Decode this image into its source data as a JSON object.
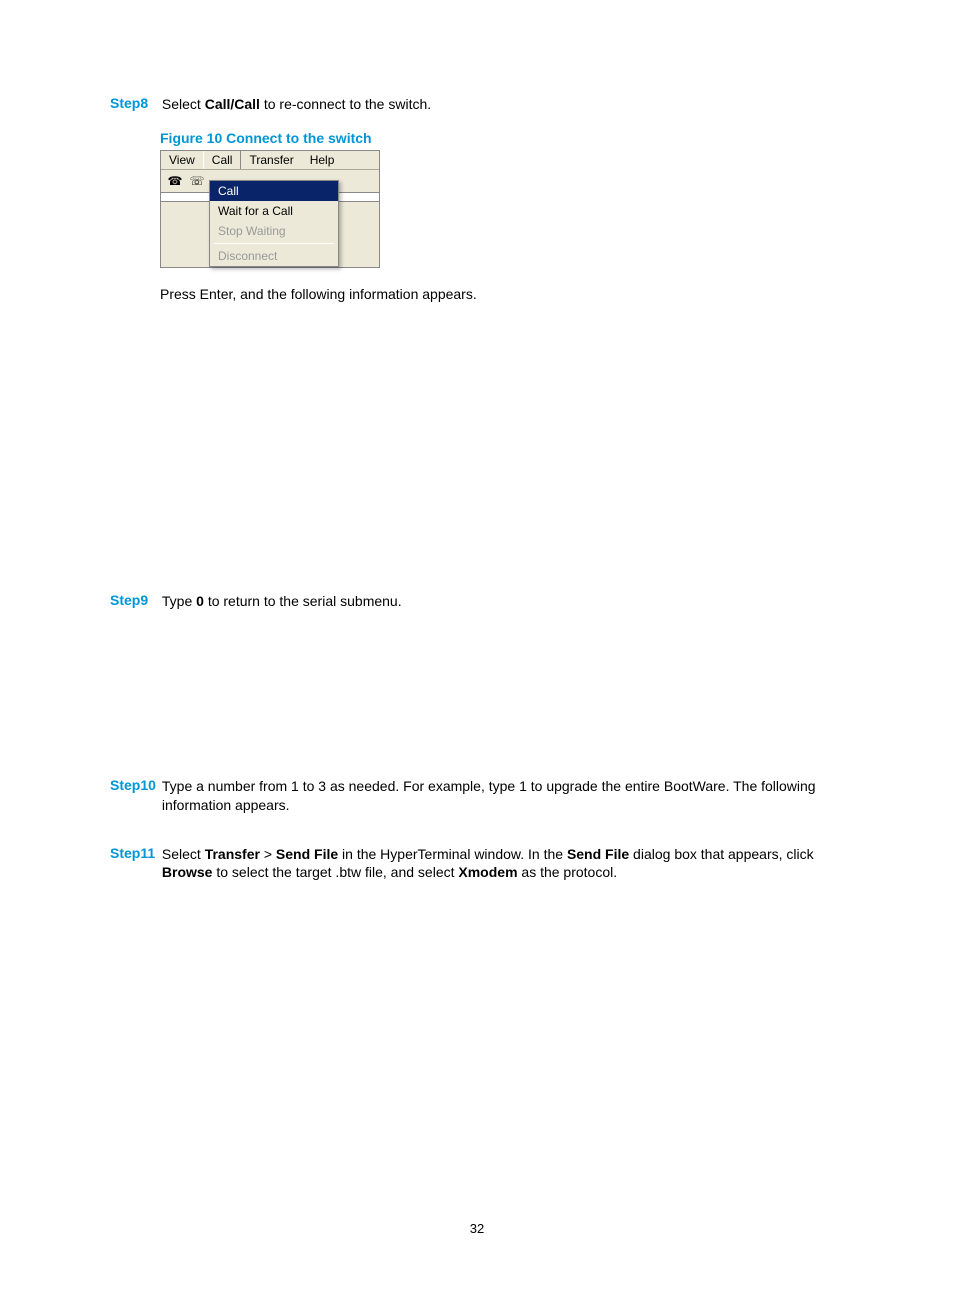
{
  "colors": {
    "accent": "#0096d6",
    "text": "#000000",
    "background": "#ffffff",
    "win_bg": "#ece9d8",
    "highlight_bg": "#0a246a",
    "highlight_fg": "#ffffff",
    "disabled": "#999999"
  },
  "steps": {
    "s8": {
      "label": "Step8",
      "pre": "Select ",
      "bold": "Call/Call",
      "post": " to re-connect to the switch."
    },
    "s9": {
      "label": "Step9",
      "pre": "Type ",
      "bold": "0",
      "post": " to return to the serial submenu."
    },
    "s10": {
      "label": "Step10",
      "text": "Type a number from 1 to 3 as needed. For example, type 1 to upgrade the entire BootWare. The following information appears."
    },
    "s11": {
      "label": "Step11",
      "pre": "Select ",
      "b1": "Transfer",
      "mid1": " > ",
      "b2": "Send File",
      "mid2": " in the HyperTerminal window. In the ",
      "b3": "Send File",
      "mid3": " dialog box that appears, click ",
      "b4": "Browse",
      "mid4": " to select the target .btw file, and select ",
      "b5": "Xmodem",
      "post": " as the protocol."
    }
  },
  "figure": {
    "caption": "Figure 10 Connect to the switch"
  },
  "ht": {
    "menubar": {
      "view": "View",
      "call": "Call",
      "transfer": "Transfer",
      "help": "Help"
    },
    "dropdown": {
      "call": "Call",
      "wait": "Wait for a Call",
      "stop": "Stop Waiting",
      "disconnect": "Disconnect"
    }
  },
  "press_enter": "Press Enter, and the following information appears.",
  "page_number": "32"
}
